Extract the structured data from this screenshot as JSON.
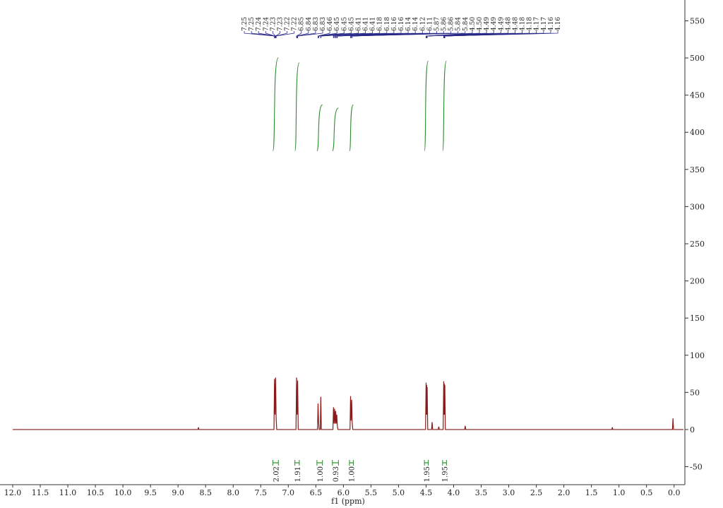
{
  "chart_data": {
    "type": "nmr",
    "x_label": "f1 (ppm)",
    "color": "#8b1a1a",
    "integral_color": "#2e8b2e",
    "label_color": "#2a2a8a",
    "xlim": [
      12.0,
      -0.17
    ],
    "xticks": [
      {
        "value": 12,
        "label": "12.0"
      },
      11.5,
      {
        "value": 11,
        "label": "11.0"
      },
      10.5,
      {
        "value": 10,
        "label": "10.0"
      },
      9.5,
      {
        "value": 9,
        "label": "9.0"
      },
      8.5,
      {
        "value": 8,
        "label": "8.0"
      },
      7.5,
      {
        "value": 7,
        "label": "7.0"
      },
      6.5,
      {
        "value": 6,
        "label": "6.0"
      },
      5.5,
      {
        "value": 5,
        "label": "5.0"
      },
      4.5,
      {
        "value": 4,
        "label": "4.0"
      },
      3.5,
      {
        "value": 3,
        "label": "3.0"
      },
      2.5,
      {
        "value": 2,
        "label": "2.0"
      },
      1.5,
      {
        "value": 1,
        "label": "1.0"
      },
      0.5,
      {
        "value": 0,
        "label": "0.0"
      }
    ],
    "ylim": [
      -78,
      578
    ],
    "yticks": [
      -50,
      0,
      50,
      100,
      150,
      200,
      250,
      300,
      350,
      400,
      450,
      500,
      550
    ],
    "x": [
      12.0,
      8.64,
      8.63,
      8.62,
      7.26,
      7.25,
      7.24,
      7.23,
      7.22,
      7.21,
      6.86,
      6.85,
      6.84,
      6.83,
      6.82,
      6.47,
      6.46,
      6.45,
      6.44,
      6.42,
      6.41,
      6.4,
      6.19,
      6.18,
      6.17,
      6.16,
      6.15,
      6.14,
      6.13,
      6.12,
      6.11,
      6.1,
      5.88,
      5.87,
      5.86,
      5.85,
      5.84,
      5.83,
      4.51,
      4.5,
      4.495,
      4.49,
      4.485,
      4.48,
      4.47,
      4.4,
      4.39,
      4.38,
      4.28,
      4.27,
      4.26,
      4.19,
      4.18,
      4.175,
      4.17,
      4.165,
      4.16,
      4.15,
      3.8,
      3.79,
      3.78,
      1.13,
      1.12,
      1.11,
      0.03,
      0.02,
      0.01,
      -0.17
    ],
    "values": [
      0,
      0,
      3,
      0,
      0,
      68,
      20,
      70,
      15,
      0,
      0,
      70,
      20,
      66,
      0,
      0,
      35,
      10,
      0,
      0,
      44,
      0,
      0,
      30,
      8,
      28,
      8,
      25,
      8,
      20,
      5,
      0,
      0,
      45,
      12,
      40,
      10,
      0,
      0,
      63,
      20,
      60,
      20,
      57,
      0,
      0,
      10,
      0,
      0,
      4,
      0,
      0,
      65,
      20,
      62,
      20,
      60,
      0,
      0,
      5,
      0,
      0,
      3,
      0,
      0,
      15,
      0,
      0
    ],
    "peaks": [
      {
        "value": 7.25,
        "label": "7.25"
      },
      {
        "value": 7.25,
        "label": "7.25"
      },
      {
        "value": 7.24,
        "label": "7.24"
      },
      {
        "value": 7.24,
        "label": "7.24"
      },
      {
        "value": 7.23,
        "label": "7.23"
      },
      {
        "value": 7.23,
        "label": "7.23"
      },
      {
        "value": 7.22,
        "label": "7.22"
      },
      {
        "value": 7.22,
        "label": "7.22"
      },
      {
        "value": 6.85,
        "label": "6.85"
      },
      {
        "value": 6.84,
        "label": "6.84"
      },
      {
        "value": 6.83,
        "label": "6.83"
      },
      {
        "value": 6.83,
        "label": "6.83"
      },
      {
        "value": 6.46,
        "label": "6.46"
      },
      {
        "value": 6.45,
        "label": "6.45"
      },
      {
        "value": 6.45,
        "label": "6.45"
      },
      {
        "value": 6.45,
        "label": "6.45"
      },
      {
        "value": 6.41,
        "label": "6.41"
      },
      {
        "value": 6.41,
        "label": "6.41"
      },
      {
        "value": 6.41,
        "label": "6.41"
      },
      {
        "value": 6.18,
        "label": "6.18"
      },
      {
        "value": 6.18,
        "label": "6.18"
      },
      {
        "value": 6.16,
        "label": "6.16"
      },
      {
        "value": 6.16,
        "label": "6.16"
      },
      {
        "value": 6.14,
        "label": "6.14"
      },
      {
        "value": 6.14,
        "label": "6.14"
      },
      {
        "value": 6.12,
        "label": "6.12"
      },
      {
        "value": 6.11,
        "label": "6.11"
      },
      {
        "value": 5.87,
        "label": "5.87"
      },
      {
        "value": 5.86,
        "label": "5.86"
      },
      {
        "value": 5.86,
        "label": "5.86"
      },
      {
        "value": 5.84,
        "label": "5.84"
      },
      {
        "value": 5.84,
        "label": "5.84"
      },
      {
        "value": 4.5,
        "label": "4.50"
      },
      {
        "value": 4.5,
        "label": "4.50"
      },
      {
        "value": 4.49,
        "label": "4.49"
      },
      {
        "value": 4.49,
        "label": "4.49"
      },
      {
        "value": 4.49,
        "label": "4.49"
      },
      {
        "value": 4.48,
        "label": "4.48"
      },
      {
        "value": 4.48,
        "label": "4.48"
      },
      {
        "value": 4.18,
        "label": "4.18"
      },
      {
        "value": 4.18,
        "label": "4.18"
      },
      {
        "value": 4.17,
        "label": "4.17"
      },
      {
        "value": 4.17,
        "label": "4.17"
      },
      {
        "value": 4.16,
        "label": "4.16"
      },
      {
        "value": 4.16,
        "label": "4.16"
      }
    ],
    "integrals": [
      {
        "range": [
          7.28,
          7.18
        ],
        "value": 2.02,
        "label": "2.02"
      },
      {
        "range": [
          6.88,
          6.8
        ],
        "value": 1.91,
        "label": "1.91"
      },
      {
        "range": [
          6.48,
          6.38
        ],
        "value": 1.0,
        "label": "1.00"
      },
      {
        "range": [
          6.2,
          6.09
        ],
        "value": 0.93,
        "label": "0.93"
      },
      {
        "range": [
          5.89,
          5.82
        ],
        "value": 1.0,
        "label": "1.00"
      },
      {
        "range": [
          4.53,
          4.46
        ],
        "value": 1.95,
        "label": "1.95"
      },
      {
        "range": [
          4.2,
          4.13
        ],
        "value": 1.95,
        "label": "1.95"
      }
    ]
  }
}
